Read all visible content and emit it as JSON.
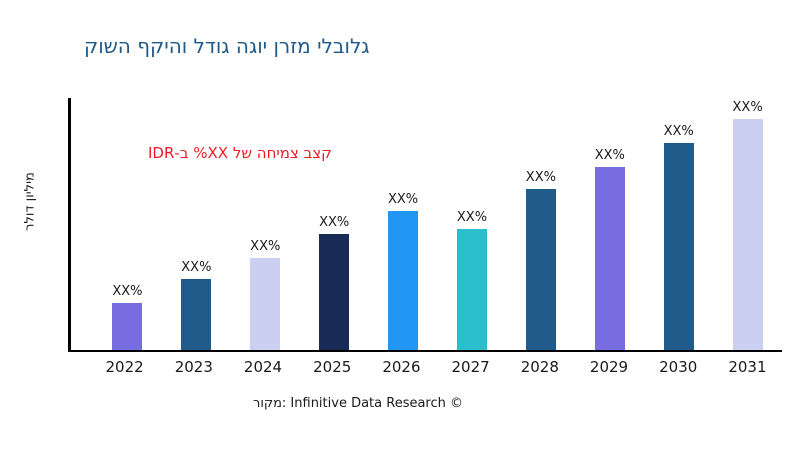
{
  "styles": {
    "title_color": "#1F5A89",
    "annotation_color": "#ED1C24",
    "axis_color": "#000000",
    "text_color": "#1a1a1a",
    "background": "#ffffff"
  },
  "chart_data": {
    "type": "bar",
    "title": "גלובלי מזרן יוגה גודל והיקף השוק",
    "ylabel": "מיליון דולר",
    "annotation": "קצב צמיחה של XX% ב-IDR",
    "source": "מקור: Infinitive Data Research ©",
    "categories": [
      "2022",
      "2023",
      "2024",
      "2025",
      "2026",
      "2027",
      "2028",
      "2029",
      "2030",
      "2031"
    ],
    "bar_labels": [
      "XX%",
      "XX%",
      "XX%",
      "XX%",
      "XX%",
      "XX%",
      "XX%",
      "XX%",
      "XX%",
      "XX%"
    ],
    "values_relative_height_pct": [
      18.5,
      28,
      36.5,
      46,
      55,
      48,
      64,
      72.5,
      82,
      91.5
    ],
    "bar_colors": [
      "#776CE0",
      "#1F5C8B",
      "#CBD0F2",
      "#172B54",
      "#2196F3",
      "#2BBECB",
      "#1F5C8B",
      "#776CE0",
      "#1F5C8B",
      "#CBD0F2"
    ],
    "grid": false,
    "y_tick_labels_visible": false,
    "legend_position": "none"
  }
}
